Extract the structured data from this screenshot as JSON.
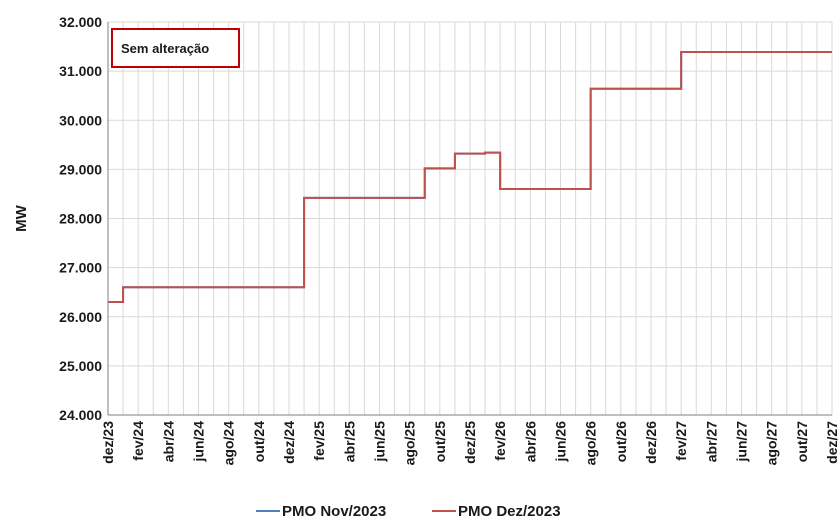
{
  "chart_data": {
    "type": "line",
    "title": "",
    "ylabel": "MW",
    "xlabel": "",
    "ylim": [
      24000,
      32000
    ],
    "yticks": [
      24000,
      25000,
      26000,
      27000,
      28000,
      29000,
      30000,
      31000,
      32000
    ],
    "ytick_labels": [
      "24.000",
      "25.000",
      "26.000",
      "27.000",
      "28.000",
      "29.000",
      "30.000",
      "31.000",
      "32.000"
    ],
    "x_tick_labels": [
      "dez/23",
      "fev/24",
      "abr/24",
      "jun/24",
      "ago/24",
      "out/24",
      "dez/24",
      "fev/25",
      "abr/25",
      "jun/25",
      "ago/25",
      "out/25",
      "dez/25",
      "fev/26",
      "abr/26",
      "jun/26",
      "ago/26",
      "out/26",
      "dez/26",
      "fev/27",
      "abr/27",
      "jun/27",
      "ago/27",
      "out/27",
      "dez/27"
    ],
    "x_months": [
      "dez/23",
      "jan/24",
      "fev/24",
      "mar/24",
      "abr/24",
      "mai/24",
      "jun/24",
      "jul/24",
      "ago/24",
      "set/24",
      "out/24",
      "nov/24",
      "dez/24",
      "jan/25",
      "fev/25",
      "mar/25",
      "abr/25",
      "mai/25",
      "jun/25",
      "jul/25",
      "ago/25",
      "set/25",
      "out/25",
      "nov/25",
      "dez/25",
      "jan/26",
      "fev/26",
      "mar/26",
      "abr/26",
      "mai/26",
      "jun/26",
      "jul/26",
      "ago/26",
      "set/26",
      "out/26",
      "nov/26",
      "dez/26",
      "jan/27",
      "fev/27",
      "mar/27",
      "abr/27",
      "mai/27",
      "jun/27",
      "jul/27",
      "ago/27",
      "set/27",
      "out/27",
      "nov/27",
      "dez/27"
    ],
    "grid": true,
    "legend_position": "bottom",
    "series": [
      {
        "name": "PMO Nov/2023",
        "color": "#4f81bd",
        "values": [
          26300,
          26600,
          26600,
          26600,
          26600,
          26600,
          26600,
          26600,
          26600,
          26600,
          26600,
          26600,
          26600,
          28420,
          28420,
          28420,
          28420,
          28420,
          28420,
          28420,
          28420,
          29020,
          29020,
          29320,
          29320,
          29340,
          28600,
          28600,
          28600,
          28600,
          28600,
          28600,
          30640,
          30640,
          30640,
          30640,
          30640,
          30640,
          31390,
          31390,
          31390,
          31390,
          31390,
          31390,
          31390,
          31390,
          31390,
          31390,
          31390
        ]
      },
      {
        "name": "PMO Dez/2023",
        "color": "#c0504d",
        "values": [
          26300,
          26600,
          26600,
          26600,
          26600,
          26600,
          26600,
          26600,
          26600,
          26600,
          26600,
          26600,
          26600,
          28420,
          28420,
          28420,
          28420,
          28420,
          28420,
          28420,
          28420,
          29020,
          29020,
          29320,
          29320,
          29340,
          28600,
          28600,
          28600,
          28600,
          28600,
          28600,
          30640,
          30640,
          30640,
          30640,
          30640,
          30640,
          31390,
          31390,
          31390,
          31390,
          31390,
          31390,
          31390,
          31390,
          31390,
          31390,
          31390
        ]
      }
    ],
    "annotation": "Sem alteração",
    "annotation_border_color": "#c00000"
  }
}
